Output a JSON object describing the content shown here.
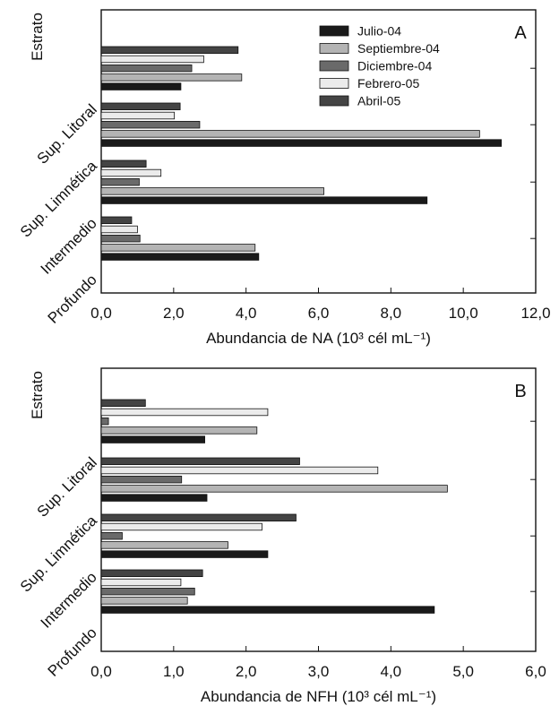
{
  "chart_data": [
    {
      "type": "bar",
      "orientation": "horizontal",
      "panel_label": "A",
      "ylabel": "Estrato",
      "xlabel": "Abundancia de NA (10³ cél mL⁻¹)",
      "xlim": [
        0,
        12
      ],
      "xticks": [
        "0,0",
        "2,0",
        "4,0",
        "6,0",
        "8,0",
        "10,0",
        "12,0"
      ],
      "categories": [
        "Sup. Litoral",
        "Sup. Limnética",
        "Intermedio",
        "Profundo"
      ],
      "series": [
        {
          "name": "Julio-04",
          "color": "#1a1a1a",
          "values": [
            2.2,
            11.05,
            9.0,
            4.35
          ]
        },
        {
          "name": "Septiembre-04",
          "color": "#b4b4b4",
          "values": [
            3.88,
            10.45,
            6.15,
            4.25
          ]
        },
        {
          "name": "Diciembre-04",
          "color": "#6a6a6a",
          "values": [
            2.5,
            2.72,
            1.05,
            1.07
          ]
        },
        {
          "name": "Febrero-05",
          "color": "#ebebeb",
          "values": [
            2.83,
            2.02,
            1.65,
            1.0
          ]
        },
        {
          "name": "Abril-05",
          "color": "#444444",
          "values": [
            3.78,
            2.18,
            1.24,
            0.84
          ]
        }
      ],
      "legend": "top-right",
      "grid": false
    },
    {
      "type": "bar",
      "orientation": "horizontal",
      "panel_label": "B",
      "ylabel": "Estrato",
      "xlabel": "Abundancia de NFH (10³ cél mL⁻¹)",
      "xlim": [
        0,
        6
      ],
      "xticks": [
        "0,0",
        "1,0",
        "2,0",
        "3,0",
        "4,0",
        "5,0",
        "6,0"
      ],
      "categories": [
        "Sup. Litoral",
        "Sup. Limnética",
        "Intermedio",
        "Profundo"
      ],
      "series": [
        {
          "name": "Julio-04",
          "color": "#1a1a1a",
          "values": [
            1.43,
            1.46,
            2.3,
            4.6
          ]
        },
        {
          "name": "Septiembre-04",
          "color": "#b4b4b4",
          "values": [
            2.15,
            4.78,
            1.75,
            1.19
          ]
        },
        {
          "name": "Diciembre-04",
          "color": "#6a6a6a",
          "values": [
            0.1,
            1.11,
            0.29,
            1.29
          ]
        },
        {
          "name": "Febrero-05",
          "color": "#ebebeb",
          "values": [
            2.3,
            3.82,
            2.22,
            1.1
          ]
        },
        {
          "name": "Abril-05",
          "color": "#444444",
          "values": [
            0.61,
            2.74,
            2.69,
            1.4
          ]
        }
      ],
      "grid": false
    }
  ]
}
